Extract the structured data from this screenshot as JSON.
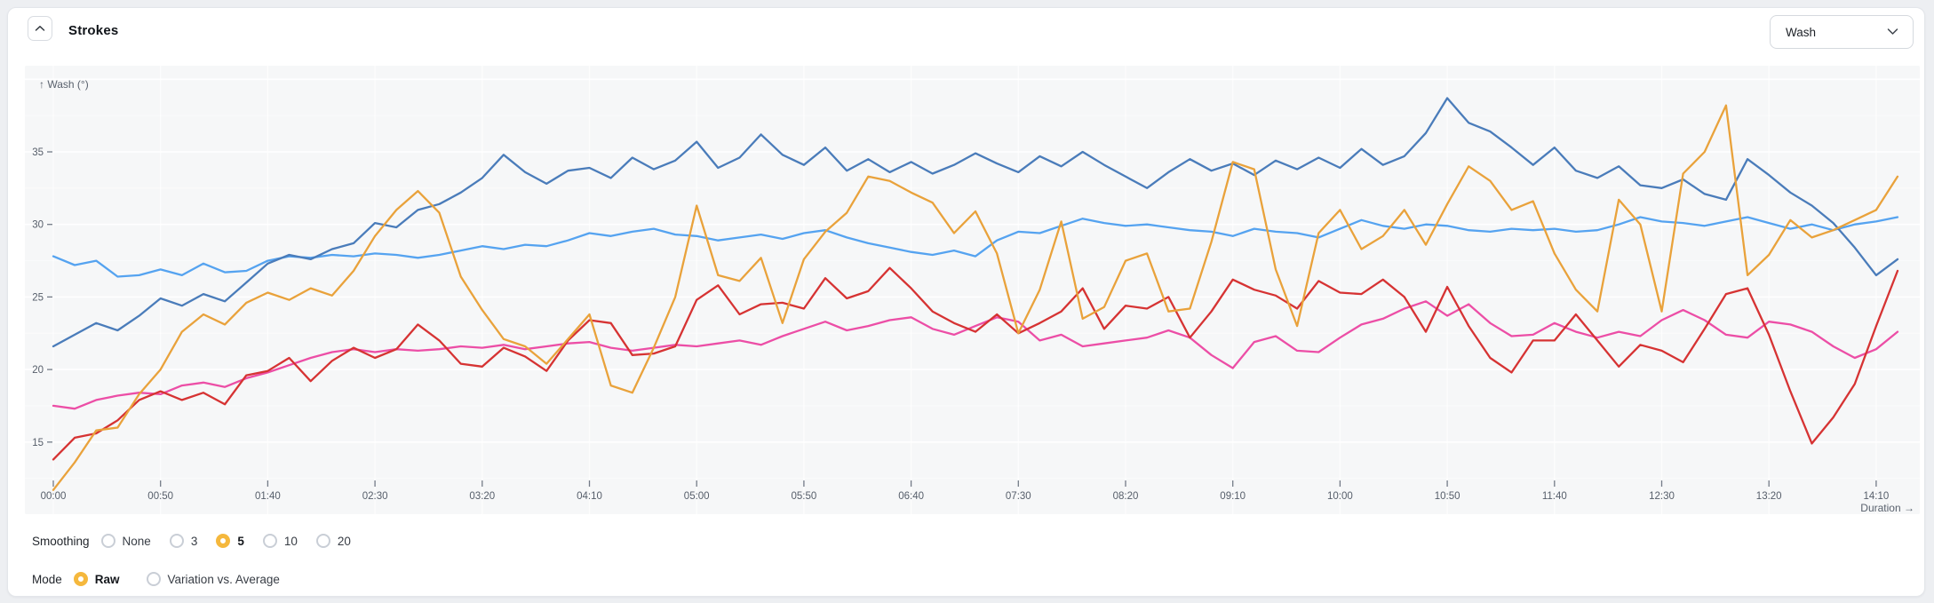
{
  "header": {
    "title": "Strokes",
    "metric_select": {
      "value": "Wash"
    }
  },
  "controls": {
    "smoothing": {
      "label": "Smoothing",
      "options": [
        "None",
        "3",
        "5",
        "10",
        "20"
      ],
      "selected": "5"
    },
    "mode": {
      "label": "Mode",
      "options": [
        "Raw",
        "Variation vs. Average"
      ],
      "selected": "Raw"
    }
  },
  "colors": {
    "accent_amber": "#f5b83d",
    "plot_background": "#f6f7f8",
    "grid": "#ffffff",
    "tick_text": "#565e6a"
  },
  "chart_data": {
    "type": "line",
    "x_axis": {
      "label": "Duration →",
      "tick_seconds": [
        0,
        50,
        100,
        150,
        200,
        250,
        300,
        350,
        400,
        450,
        500,
        550,
        600,
        650,
        700,
        750,
        800,
        850
      ],
      "tick_labels": [
        "00:00",
        "00:50",
        "01:40",
        "02:30",
        "03:20",
        "04:10",
        "05:00",
        "05:50",
        "06:40",
        "07:30",
        "08:20",
        "09:10",
        "10:00",
        "10:50",
        "11:40",
        "12:30",
        "13:20",
        "14:10"
      ]
    },
    "y_axis": {
      "label": "↑ Wash (°)",
      "ticks": [
        15,
        20,
        25,
        30,
        35
      ],
      "range": [
        10,
        41
      ]
    },
    "sampling": {
      "t_start_s": 0,
      "t_step_s": 10,
      "t_end_s": 860
    },
    "grid": true,
    "legend": "none",
    "series": [
      {
        "name": "light-blue",
        "color": "#55a3f0",
        "values": [
          27.8,
          27.2,
          27.5,
          26.4,
          26.5,
          26.9,
          26.5,
          27.3,
          26.7,
          26.8,
          27.5,
          27.8,
          27.7,
          27.9,
          27.8,
          28.0,
          27.9,
          27.7,
          27.9,
          28.2,
          28.5,
          28.3,
          28.6,
          28.5,
          28.9,
          29.4,
          29.2,
          29.5,
          29.7,
          29.3,
          29.2,
          28.9,
          29.1,
          29.3,
          29.0,
          29.4,
          29.6,
          29.1,
          28.7,
          28.4,
          28.1,
          27.9,
          28.2,
          27.8,
          28.9,
          29.5,
          29.4,
          29.9,
          30.4,
          30.1,
          29.9,
          30.0,
          29.8,
          29.6,
          29.5,
          29.2,
          29.7,
          29.5,
          29.4,
          29.1,
          29.7,
          30.3,
          29.9,
          29.7,
          30.0,
          29.9,
          29.6,
          29.5,
          29.7,
          29.6,
          29.7,
          29.5,
          29.6,
          30.0,
          30.5,
          30.2,
          30.1,
          29.9,
          30.2,
          30.5,
          30.1,
          29.7,
          30.0,
          29.6,
          30.0,
          30.2,
          30.5
        ]
      },
      {
        "name": "steel-blue",
        "color": "#4a7cba",
        "values": [
          21.6,
          22.4,
          23.2,
          22.7,
          23.7,
          24.9,
          24.4,
          25.2,
          24.7,
          26.0,
          27.3,
          27.9,
          27.6,
          28.3,
          28.7,
          30.1,
          29.8,
          31.0,
          31.4,
          32.2,
          33.2,
          34.8,
          33.6,
          32.8,
          33.7,
          33.9,
          33.2,
          34.6,
          33.8,
          34.4,
          35.7,
          33.9,
          34.6,
          36.2,
          34.8,
          34.1,
          35.3,
          33.7,
          34.5,
          33.6,
          34.3,
          33.5,
          34.1,
          34.9,
          34.2,
          33.6,
          34.7,
          34.0,
          35.0,
          34.1,
          33.3,
          32.5,
          33.6,
          34.5,
          33.7,
          34.2,
          33.4,
          34.4,
          33.8,
          34.6,
          33.9,
          35.2,
          34.1,
          34.7,
          36.3,
          38.7,
          37.0,
          36.4,
          35.3,
          34.1,
          35.3,
          33.7,
          33.2,
          34.0,
          32.7,
          32.5,
          33.1,
          32.1,
          31.7,
          34.5,
          33.4,
          32.2,
          31.3,
          30.1,
          28.4,
          26.5,
          27.6
        ]
      },
      {
        "name": "magenta",
        "color": "#ec4ea6",
        "values": [
          17.5,
          17.3,
          17.9,
          18.2,
          18.4,
          18.3,
          18.9,
          19.1,
          18.8,
          19.4,
          19.8,
          20.3,
          20.8,
          21.2,
          21.4,
          21.2,
          21.4,
          21.3,
          21.4,
          21.6,
          21.5,
          21.7,
          21.4,
          21.6,
          21.8,
          21.9,
          21.5,
          21.3,
          21.5,
          21.7,
          21.6,
          21.8,
          22.0,
          21.7,
          22.3,
          22.8,
          23.3,
          22.7,
          23.0,
          23.4,
          23.6,
          22.8,
          22.4,
          23.0,
          23.6,
          23.3,
          22.0,
          22.4,
          21.6,
          21.8,
          22.0,
          22.2,
          22.7,
          22.2,
          21.0,
          20.1,
          21.9,
          22.3,
          21.3,
          21.2,
          22.2,
          23.1,
          23.5,
          24.2,
          24.7,
          23.7,
          24.5,
          23.2,
          22.3,
          22.4,
          23.2,
          22.6,
          22.2,
          22.6,
          22.3,
          23.4,
          24.1,
          23.4,
          22.4,
          22.2,
          23.3,
          23.1,
          22.6,
          21.6,
          20.8,
          21.4,
          22.6
        ]
      },
      {
        "name": "red",
        "color": "#d63333",
        "values": [
          13.8,
          15.3,
          15.6,
          16.5,
          17.9,
          18.5,
          17.9,
          18.4,
          17.6,
          19.6,
          19.9,
          20.8,
          19.2,
          20.6,
          21.5,
          20.8,
          21.4,
          23.1,
          22.0,
          20.4,
          20.2,
          21.5,
          20.9,
          19.9,
          22.0,
          23.4,
          23.2,
          21.0,
          21.1,
          21.6,
          24.8,
          25.8,
          23.8,
          24.5,
          24.6,
          24.2,
          26.3,
          24.9,
          25.4,
          27.0,
          25.6,
          24.0,
          23.2,
          22.6,
          23.8,
          22.5,
          23.2,
          24.0,
          25.6,
          22.8,
          24.4,
          24.2,
          25.0,
          22.2,
          24.0,
          26.2,
          25.5,
          25.1,
          24.2,
          26.1,
          25.3,
          25.2,
          26.2,
          25.0,
          22.6,
          25.7,
          23.0,
          20.8,
          19.8,
          22.0,
          22.0,
          23.8,
          22.0,
          20.2,
          21.7,
          21.3,
          20.5,
          22.8,
          25.2,
          25.6,
          22.4,
          18.5,
          14.9,
          16.7,
          19.0,
          23.0,
          26.8
        ]
      },
      {
        "name": "amber",
        "color": "#e9a23b",
        "values": [
          11.7,
          13.6,
          15.8,
          16.0,
          18.3,
          20.0,
          22.6,
          23.8,
          23.1,
          24.6,
          25.3,
          24.8,
          25.6,
          25.1,
          26.8,
          29.2,
          31.0,
          32.3,
          30.8,
          26.4,
          24.1,
          22.1,
          21.6,
          20.4,
          22.1,
          23.8,
          18.9,
          18.4,
          21.5,
          25.0,
          31.3,
          26.5,
          26.1,
          27.7,
          23.2,
          27.6,
          29.5,
          30.8,
          33.3,
          33.0,
          32.2,
          31.5,
          29.4,
          30.9,
          28.0,
          22.5,
          25.5,
          30.2,
          23.5,
          24.3,
          27.5,
          28.0,
          24.0,
          24.2,
          28.8,
          34.3,
          33.8,
          26.9,
          23.0,
          29.4,
          31.0,
          28.3,
          29.2,
          31.0,
          28.6,
          31.4,
          34.0,
          33.0,
          31.0,
          31.6,
          28.0,
          25.5,
          24.0,
          31.7,
          30.0,
          24.0,
          33.5,
          35.0,
          38.2,
          26.5,
          27.9,
          30.3,
          29.1,
          29.6,
          30.3,
          31.0,
          33.3
        ]
      }
    ]
  }
}
